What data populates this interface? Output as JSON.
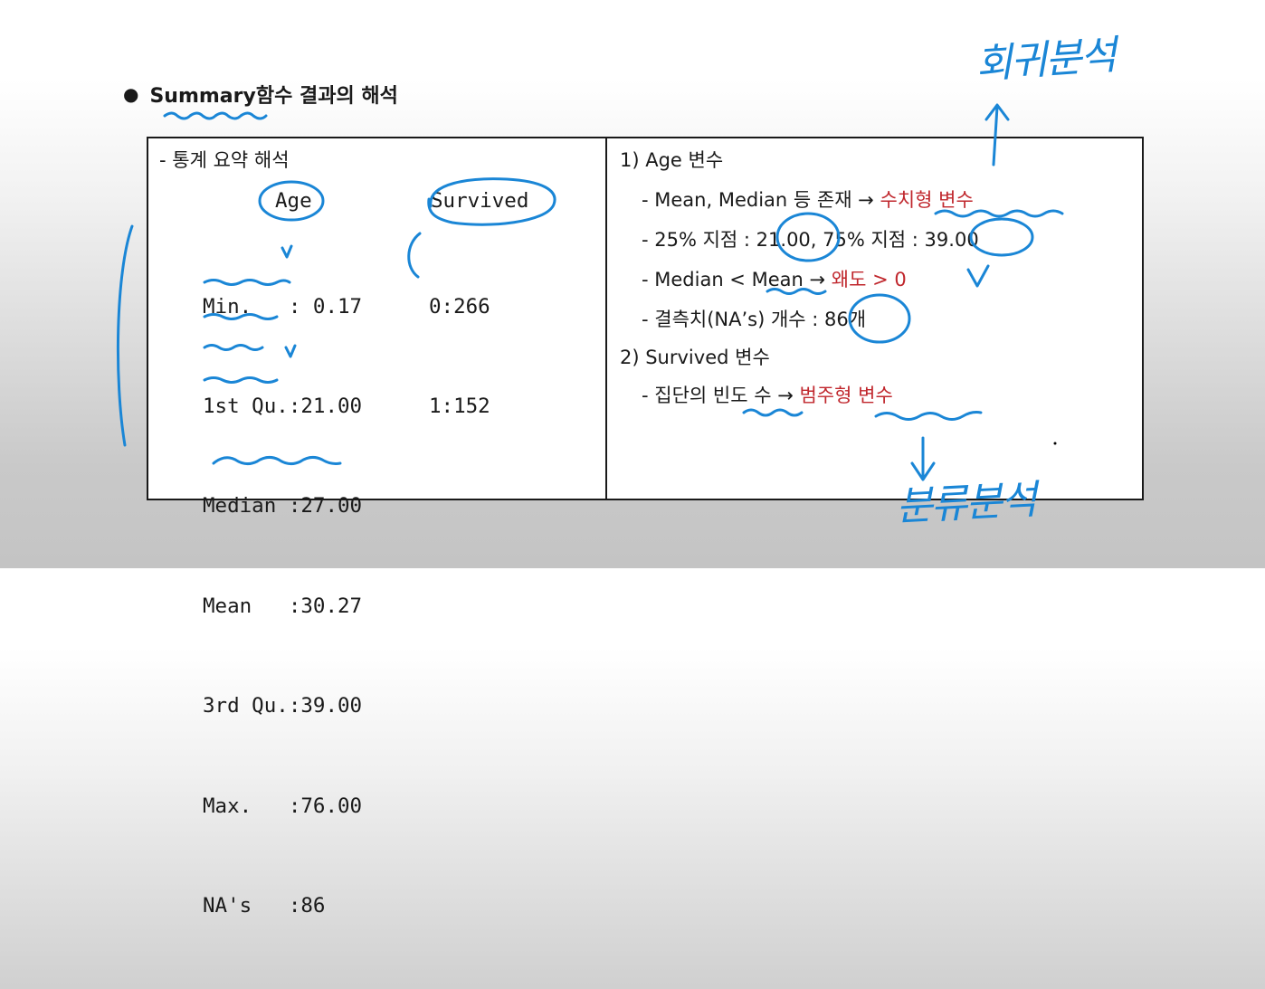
{
  "title": {
    "bullet": "●",
    "text": "Summary함수 결과의 해석"
  },
  "left_panel": {
    "heading": "- 통계 요약 해석",
    "col_age": "Age",
    "col_survived": "Survived",
    "age_stats": [
      "Min.   : 0.17",
      "1st Qu.:21.00",
      "Median :27.00",
      "Mean   :30.27",
      "3rd Qu.:39.00",
      "Max.   :76.00",
      "NA's   :86"
    ],
    "survived_counts": [
      "0:266",
      "1:152"
    ]
  },
  "right_panel": {
    "section1_title": "1) Age 변수",
    "line1_prefix": "- Mean, Median 등 존재 →",
    "line1_result": "수치형 변수",
    "line2": "- 25% 지점 : 21.00, 75% 지점 : 39.00",
    "line3_prefix": "- Median < Mean →",
    "line3_result": "왜도 > 0",
    "line4": "- 결측치(NA’s) 개수 : 86개",
    "section2_title": "2) Survived 변수",
    "line5_prefix": "- 집단의 빈도 수 →",
    "line5_result": "범주형 변수"
  },
  "annotations": {
    "handwritten_top": "회귀분석",
    "handwritten_bottom": "분류분석",
    "ink_color": "#1a86d6",
    "accent_red": "#c0272d"
  }
}
